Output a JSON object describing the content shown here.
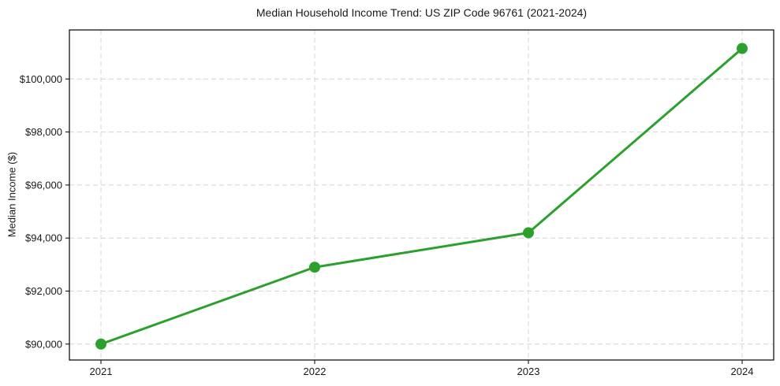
{
  "chart_data": {
    "type": "line",
    "title": "Median Household Income Trend: US ZIP Code 96761 (2021-2024)",
    "xlabel": "",
    "ylabel": "Median Income ($)",
    "categories": [
      "2021",
      "2022",
      "2023",
      "2024"
    ],
    "series": [
      {
        "name": "Median Household Income",
        "values": [
          90000,
          92900,
          94200,
          101150
        ]
      }
    ],
    "ytick_values": [
      90000,
      92000,
      94000,
      96000,
      98000,
      100000
    ],
    "ytick_labels": [
      "$90,000",
      "$92,000",
      "$94,000",
      "$96,000",
      "$98,000",
      "$100,000"
    ],
    "ylim": [
      89400,
      101850
    ],
    "grid": true,
    "legend": "none",
    "colors": {
      "line": "#2ca02c",
      "marker": "#2ca02c",
      "grid": "#d4d4d4",
      "axis": "#000000",
      "text": "#1a1a1a"
    }
  }
}
